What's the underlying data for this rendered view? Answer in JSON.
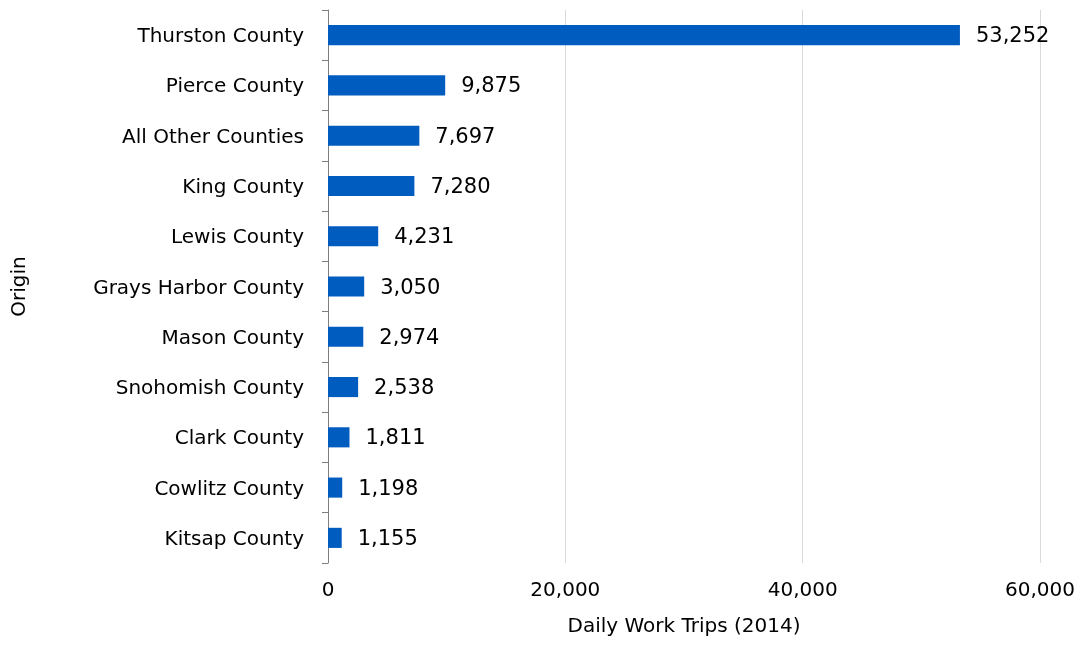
{
  "chart_data": {
    "type": "bar",
    "orientation": "horizontal",
    "xlabel": "Daily Work Trips (2014)",
    "ylabel": "Origin",
    "categories": [
      "Thurston County",
      "Pierce County",
      "All Other Counties",
      "King County",
      "Lewis County",
      "Grays Harbor County",
      "Mason County",
      "Snohomish County",
      "Clark County",
      "Cowlitz County",
      "Kitsap County"
    ],
    "values": [
      53252,
      9875,
      7697,
      7280,
      4231,
      3050,
      2974,
      2538,
      1811,
      1198,
      1155
    ],
    "value_labels": [
      "53,252",
      "9,875",
      "7,697",
      "7,280",
      "4,231",
      "3,050",
      "2,974",
      "2,538",
      "1,811",
      "1,198",
      "1,155"
    ],
    "color": "#005cbf",
    "xlim": [
      0,
      60000
    ],
    "xticks": [
      0,
      {
        "value": 20000,
        "label": "20,000"
      },
      {
        "value": 40000,
        "label": "40,000"
      },
      {
        "value": 60000,
        "label": "60,000"
      }
    ],
    "grid": "x"
  }
}
